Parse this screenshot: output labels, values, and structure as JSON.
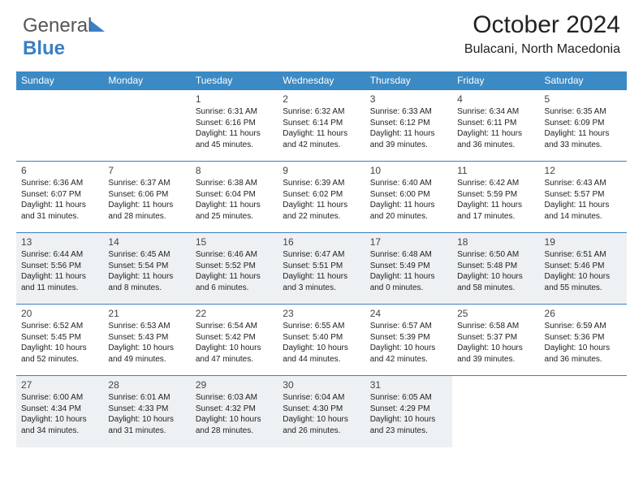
{
  "logo": {
    "a": "General",
    "b": "Blue"
  },
  "header": {
    "title": "October 2024",
    "location": "Bulacani, North Macedonia"
  },
  "colors": {
    "header_bg": "#3b8ac4",
    "rule": "#3b7fc4",
    "shade": "#eef1f3",
    "text": "#222222"
  },
  "weekdays": [
    "Sunday",
    "Monday",
    "Tuesday",
    "Wednesday",
    "Thursday",
    "Friday",
    "Saturday"
  ],
  "cells": [
    [
      null,
      null,
      {
        "n": "1",
        "lines": [
          "Sunrise: 6:31 AM",
          "Sunset: 6:16 PM",
          "Daylight: 11 hours",
          "and 45 minutes."
        ]
      },
      {
        "n": "2",
        "lines": [
          "Sunrise: 6:32 AM",
          "Sunset: 6:14 PM",
          "Daylight: 11 hours",
          "and 42 minutes."
        ]
      },
      {
        "n": "3",
        "lines": [
          "Sunrise: 6:33 AM",
          "Sunset: 6:12 PM",
          "Daylight: 11 hours",
          "and 39 minutes."
        ]
      },
      {
        "n": "4",
        "lines": [
          "Sunrise: 6:34 AM",
          "Sunset: 6:11 PM",
          "Daylight: 11 hours",
          "and 36 minutes."
        ]
      },
      {
        "n": "5",
        "lines": [
          "Sunrise: 6:35 AM",
          "Sunset: 6:09 PM",
          "Daylight: 11 hours",
          "and 33 minutes."
        ]
      }
    ],
    [
      {
        "n": "6",
        "lines": [
          "Sunrise: 6:36 AM",
          "Sunset: 6:07 PM",
          "Daylight: 11 hours",
          "and 31 minutes."
        ]
      },
      {
        "n": "7",
        "lines": [
          "Sunrise: 6:37 AM",
          "Sunset: 6:06 PM",
          "Daylight: 11 hours",
          "and 28 minutes."
        ]
      },
      {
        "n": "8",
        "lines": [
          "Sunrise: 6:38 AM",
          "Sunset: 6:04 PM",
          "Daylight: 11 hours",
          "and 25 minutes."
        ]
      },
      {
        "n": "9",
        "lines": [
          "Sunrise: 6:39 AM",
          "Sunset: 6:02 PM",
          "Daylight: 11 hours",
          "and 22 minutes."
        ]
      },
      {
        "n": "10",
        "lines": [
          "Sunrise: 6:40 AM",
          "Sunset: 6:00 PM",
          "Daylight: 11 hours",
          "and 20 minutes."
        ]
      },
      {
        "n": "11",
        "lines": [
          "Sunrise: 6:42 AM",
          "Sunset: 5:59 PM",
          "Daylight: 11 hours",
          "and 17 minutes."
        ]
      },
      {
        "n": "12",
        "lines": [
          "Sunrise: 6:43 AM",
          "Sunset: 5:57 PM",
          "Daylight: 11 hours",
          "and 14 minutes."
        ]
      }
    ],
    [
      {
        "n": "13",
        "lines": [
          "Sunrise: 6:44 AM",
          "Sunset: 5:56 PM",
          "Daylight: 11 hours",
          "and 11 minutes."
        ]
      },
      {
        "n": "14",
        "lines": [
          "Sunrise: 6:45 AM",
          "Sunset: 5:54 PM",
          "Daylight: 11 hours",
          "and 8 minutes."
        ]
      },
      {
        "n": "15",
        "lines": [
          "Sunrise: 6:46 AM",
          "Sunset: 5:52 PM",
          "Daylight: 11 hours",
          "and 6 minutes."
        ]
      },
      {
        "n": "16",
        "lines": [
          "Sunrise: 6:47 AM",
          "Sunset: 5:51 PM",
          "Daylight: 11 hours",
          "and 3 minutes."
        ]
      },
      {
        "n": "17",
        "lines": [
          "Sunrise: 6:48 AM",
          "Sunset: 5:49 PM",
          "Daylight: 11 hours",
          "and 0 minutes."
        ]
      },
      {
        "n": "18",
        "lines": [
          "Sunrise: 6:50 AM",
          "Sunset: 5:48 PM",
          "Daylight: 10 hours",
          "and 58 minutes."
        ]
      },
      {
        "n": "19",
        "lines": [
          "Sunrise: 6:51 AM",
          "Sunset: 5:46 PM",
          "Daylight: 10 hours",
          "and 55 minutes."
        ]
      }
    ],
    [
      {
        "n": "20",
        "lines": [
          "Sunrise: 6:52 AM",
          "Sunset: 5:45 PM",
          "Daylight: 10 hours",
          "and 52 minutes."
        ]
      },
      {
        "n": "21",
        "lines": [
          "Sunrise: 6:53 AM",
          "Sunset: 5:43 PM",
          "Daylight: 10 hours",
          "and 49 minutes."
        ]
      },
      {
        "n": "22",
        "lines": [
          "Sunrise: 6:54 AM",
          "Sunset: 5:42 PM",
          "Daylight: 10 hours",
          "and 47 minutes."
        ]
      },
      {
        "n": "23",
        "lines": [
          "Sunrise: 6:55 AM",
          "Sunset: 5:40 PM",
          "Daylight: 10 hours",
          "and 44 minutes."
        ]
      },
      {
        "n": "24",
        "lines": [
          "Sunrise: 6:57 AM",
          "Sunset: 5:39 PM",
          "Daylight: 10 hours",
          "and 42 minutes."
        ]
      },
      {
        "n": "25",
        "lines": [
          "Sunrise: 6:58 AM",
          "Sunset: 5:37 PM",
          "Daylight: 10 hours",
          "and 39 minutes."
        ]
      },
      {
        "n": "26",
        "lines": [
          "Sunrise: 6:59 AM",
          "Sunset: 5:36 PM",
          "Daylight: 10 hours",
          "and 36 minutes."
        ]
      }
    ],
    [
      {
        "n": "27",
        "lines": [
          "Sunrise: 6:00 AM",
          "Sunset: 4:34 PM",
          "Daylight: 10 hours",
          "and 34 minutes."
        ]
      },
      {
        "n": "28",
        "lines": [
          "Sunrise: 6:01 AM",
          "Sunset: 4:33 PM",
          "Daylight: 10 hours",
          "and 31 minutes."
        ]
      },
      {
        "n": "29",
        "lines": [
          "Sunrise: 6:03 AM",
          "Sunset: 4:32 PM",
          "Daylight: 10 hours",
          "and 28 minutes."
        ]
      },
      {
        "n": "30",
        "lines": [
          "Sunrise: 6:04 AM",
          "Sunset: 4:30 PM",
          "Daylight: 10 hours",
          "and 26 minutes."
        ]
      },
      {
        "n": "31",
        "lines": [
          "Sunrise: 6:05 AM",
          "Sunset: 4:29 PM",
          "Daylight: 10 hours",
          "and 23 minutes."
        ]
      },
      null,
      null
    ]
  ],
  "shade_rows": [
    2,
    4
  ]
}
